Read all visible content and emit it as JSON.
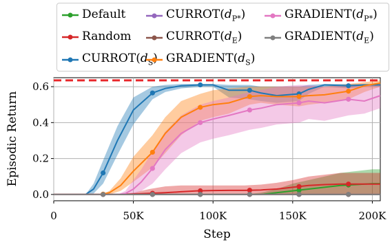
{
  "chart_data": {
    "type": "line",
    "xlabel": "Step",
    "ylabel": "Episodic Return",
    "xlim": [
      0,
      205000
    ],
    "ylim": [
      -0.035,
      0.65
    ],
    "x_ticks": [
      0,
      50000,
      100000,
      150000,
      200000
    ],
    "x_tick_labels": [
      "0",
      "50K",
      "100K",
      "150K",
      "200K"
    ],
    "y_ticks": [
      0.0,
      0.2,
      0.4,
      0.6
    ],
    "y_tick_labels": [
      "0.0",
      "0.2",
      "0.4",
      "0.6"
    ],
    "grid": true,
    "legend_placement": "top",
    "reference_line": {
      "y": 0.635,
      "color": "#e8262a",
      "style": "dashed"
    },
    "series": [
      {
        "name": "Default",
        "color": "#2ca02c",
        "x": [
          0,
          10000,
          20000,
          30000,
          40000,
          50000,
          60000,
          70000,
          80000,
          90000,
          100000,
          110000,
          120000,
          130000,
          140000,
          150000,
          160000,
          170000,
          180000,
          190000,
          200000,
          205000
        ],
        "y": [
          0,
          0,
          0,
          0,
          0,
          0,
          0,
          0,
          0,
          0,
          0,
          0,
          0,
          0,
          0.01,
          0.02,
          0.03,
          0.04,
          0.05,
          0.055,
          0.06,
          0.06
        ],
        "lower": [
          0,
          0,
          0,
          0,
          0,
          0,
          0,
          0,
          0,
          0,
          0,
          0,
          0,
          0,
          0,
          0,
          0,
          0,
          0,
          0,
          0,
          0
        ],
        "upper": [
          0,
          0,
          0,
          0,
          0,
          0,
          0,
          0,
          0,
          0,
          0,
          0,
          0,
          0.01,
          0.03,
          0.06,
          0.08,
          0.1,
          0.12,
          0.13,
          0.14,
          0.14
        ],
        "markers_x": [
          154000,
          185000
        ]
      },
      {
        "name": "Random",
        "color": "#d62728",
        "x": [
          0,
          10000,
          20000,
          30000,
          40000,
          50000,
          60000,
          70000,
          80000,
          90000,
          100000,
          110000,
          120000,
          130000,
          140000,
          150000,
          160000,
          170000,
          180000,
          190000,
          200000,
          205000
        ],
        "y": [
          0,
          0,
          0,
          0,
          0,
          0.003,
          0.006,
          0.01,
          0.015,
          0.02,
          0.022,
          0.023,
          0.023,
          0.025,
          0.03,
          0.04,
          0.05,
          0.055,
          0.058,
          0.058,
          0.058,
          0.058
        ],
        "lower": [
          0,
          0,
          0,
          0,
          0,
          0,
          0,
          0,
          0,
          0,
          0,
          0,
          0,
          0,
          0,
          0,
          0,
          0,
          0,
          0,
          0,
          0
        ],
        "upper": [
          0,
          0,
          0,
          0,
          0.002,
          0.01,
          0.03,
          0.045,
          0.05,
          0.05,
          0.05,
          0.05,
          0.05,
          0.055,
          0.065,
          0.08,
          0.1,
          0.11,
          0.12,
          0.12,
          0.12,
          0.12
        ],
        "markers_x": [
          31000,
          62000,
          92000,
          123000,
          154000,
          185000
        ]
      },
      {
        "name": "CURROT(d_S)",
        "color": "#1f77b4",
        "x": [
          0,
          20000,
          25000,
          31000,
          40000,
          50000,
          62000,
          70000,
          80000,
          92000,
          100000,
          110000,
          123000,
          130000,
          140000,
          154000,
          160000,
          170000,
          185000,
          195000,
          205000
        ],
        "y": [
          0,
          0,
          0.03,
          0.12,
          0.3,
          0.47,
          0.565,
          0.59,
          0.605,
          0.61,
          0.61,
          0.58,
          0.58,
          0.565,
          0.55,
          0.56,
          0.585,
          0.61,
          0.605,
          0.61,
          0.61
        ],
        "lower": [
          0,
          0,
          0.005,
          0.06,
          0.22,
          0.39,
          0.53,
          0.57,
          0.59,
          0.6,
          0.6,
          0.54,
          0.53,
          0.52,
          0.51,
          0.52,
          0.56,
          0.6,
          0.59,
          0.6,
          0.6
        ],
        "upper": [
          0,
          0,
          0.06,
          0.19,
          0.38,
          0.54,
          0.6,
          0.61,
          0.615,
          0.615,
          0.615,
          0.61,
          0.61,
          0.6,
          0.6,
          0.6,
          0.61,
          0.615,
          0.615,
          0.615,
          0.615
        ],
        "markers_x": [
          31000,
          62000,
          92000,
          123000,
          154000,
          185000
        ]
      },
      {
        "name": "CURROT(d_P*)",
        "color": "#9467bd",
        "x": [
          0,
          205000
        ],
        "y": [
          0,
          0
        ],
        "lower": [
          0,
          0
        ],
        "upper": [
          0,
          0
        ],
        "markers_x": [
          31000,
          62000,
          92000,
          123000,
          154000,
          185000
        ]
      },
      {
        "name": "CURROT(d_E)",
        "color": "#8c564b",
        "x": [
          0,
          205000
        ],
        "y": [
          0,
          0
        ],
        "lower": [
          0,
          0
        ],
        "upper": [
          0,
          0
        ],
        "markers_x": [
          31000,
          62000,
          92000,
          123000,
          154000,
          185000
        ]
      },
      {
        "name": "GRADIENT(d_S)",
        "color": "#ff7f0e",
        "x": [
          0,
          30000,
          35000,
          42000,
          50000,
          62000,
          70000,
          80000,
          92000,
          100000,
          110000,
          123000,
          130000,
          140000,
          154000,
          160000,
          170000,
          185000,
          195000,
          205000
        ],
        "y": [
          0,
          0,
          0.01,
          0.05,
          0.13,
          0.235,
          0.34,
          0.43,
          0.485,
          0.5,
          0.51,
          0.545,
          0.55,
          0.545,
          0.545,
          0.55,
          0.555,
          0.575,
          0.605,
          0.62
        ],
        "lower": [
          0,
          0,
          0,
          0.02,
          0.07,
          0.15,
          0.23,
          0.33,
          0.41,
          0.43,
          0.45,
          0.5,
          0.51,
          0.5,
          0.49,
          0.5,
          0.51,
          0.53,
          0.57,
          0.6
        ],
        "upper": [
          0,
          0,
          0.02,
          0.09,
          0.21,
          0.33,
          0.43,
          0.52,
          0.56,
          0.58,
          0.59,
          0.6,
          0.6,
          0.6,
          0.6,
          0.6,
          0.6,
          0.615,
          0.625,
          0.635
        ],
        "markers_x": [
          31000,
          62000,
          92000,
          123000,
          154000,
          185000
        ]
      },
      {
        "name": "GRADIENT(d_P*)",
        "color": "#e377c2",
        "x": [
          0,
          40000,
          45000,
          50000,
          55000,
          62000,
          70000,
          80000,
          92000,
          100000,
          110000,
          123000,
          130000,
          140000,
          154000,
          160000,
          170000,
          185000,
          195000,
          205000
        ],
        "y": [
          0,
          0,
          0.005,
          0.03,
          0.07,
          0.145,
          0.25,
          0.34,
          0.4,
          0.42,
          0.44,
          0.47,
          0.48,
          0.5,
          0.51,
          0.52,
          0.51,
          0.53,
          0.52,
          0.55
        ],
        "lower": [
          0,
          0,
          0,
          0,
          0.02,
          0.06,
          0.14,
          0.23,
          0.29,
          0.31,
          0.33,
          0.36,
          0.37,
          0.39,
          0.4,
          0.42,
          0.41,
          0.44,
          0.45,
          0.48
        ],
        "upper": [
          0,
          0,
          0.02,
          0.08,
          0.14,
          0.24,
          0.35,
          0.44,
          0.5,
          0.52,
          0.54,
          0.57,
          0.58,
          0.6,
          0.61,
          0.61,
          0.6,
          0.61,
          0.6,
          0.62
        ],
        "markers_x": [
          62000,
          92000,
          123000,
          154000,
          185000
        ]
      },
      {
        "name": "GRADIENT(d_E)",
        "color": "#7f7f7f",
        "x": [
          0,
          205000
        ],
        "y": [
          0,
          0
        ],
        "lower": [
          0,
          0
        ],
        "upper": [
          0,
          0
        ],
        "markers_x": [
          31000,
          62000,
          92000,
          123000,
          154000,
          185000
        ]
      }
    ]
  },
  "legend": {
    "default": {
      "name": "Default",
      "color": "#2ca02c"
    },
    "random": {
      "name": "Random",
      "color": "#d62728"
    },
    "currot_s": {
      "name": "CURROT",
      "sub": "S",
      "color": "#1f77b4"
    },
    "currot_p": {
      "name": "CURROT",
      "sub": "P*",
      "color": "#9467bd"
    },
    "currot_e": {
      "name": "CURROT",
      "sub": "E",
      "color": "#8c564b"
    },
    "gradient_s": {
      "name": "GRADIENT",
      "sub": "S",
      "color": "#ff7f0e"
    },
    "gradient_p": {
      "name": "GRADIENT",
      "sub": "P*",
      "color": "#e377c2"
    },
    "gradient_e": {
      "name": "GRADIENT",
      "sub": "E",
      "color": "#7f7f7f"
    }
  }
}
